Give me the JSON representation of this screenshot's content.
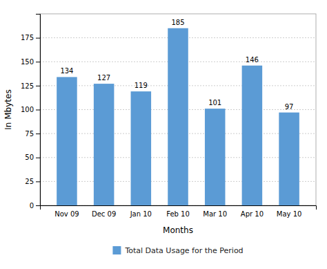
{
  "chart_data": {
    "type": "bar",
    "categories": [
      "Nov 09",
      "Dec 09",
      "Jan 10",
      "Feb 10",
      "Mar 10",
      "Apr 10",
      "May 10"
    ],
    "series": [
      {
        "name": "Total Data Usage for the Period",
        "color": "#5b9bd5",
        "values": [
          134,
          127,
          119,
          185,
          101,
          146,
          97
        ]
      }
    ],
    "xlabel": "Months",
    "ylabel": "In Mbytes",
    "ylim": [
      0,
      200
    ],
    "yticks": [
      0,
      25,
      50,
      75,
      100,
      125,
      150,
      175
    ],
    "grid": true,
    "legend": "bottom",
    "data_labels": true
  }
}
